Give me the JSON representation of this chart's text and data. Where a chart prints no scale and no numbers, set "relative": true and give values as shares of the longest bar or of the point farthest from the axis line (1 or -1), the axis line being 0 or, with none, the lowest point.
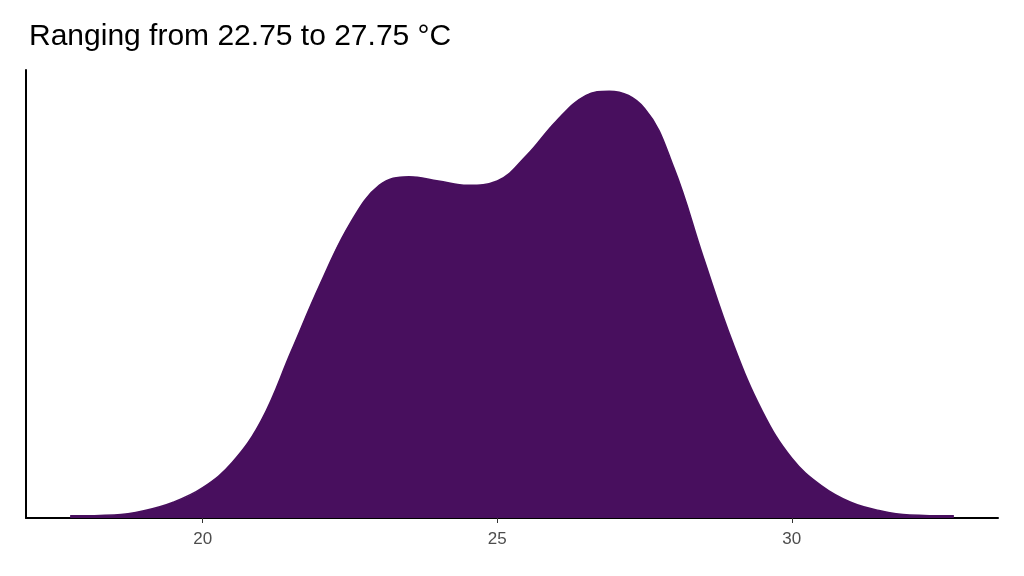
{
  "chart_data": {
    "type": "area",
    "title": "Ranging from 22.75 to 27.75 °C",
    "relative": true,
    "x": [
      17.75,
      18.5,
      19,
      19.5,
      20,
      20.5,
      21,
      21.5,
      22,
      22.5,
      23,
      23.5,
      24,
      24.5,
      25,
      25.5,
      26,
      26.5,
      26.9,
      27.5,
      28,
      28.5,
      29,
      29.5,
      30,
      30.5,
      31,
      31.5,
      32,
      32.75
    ],
    "series": [
      {
        "color": "#480f5e",
        "values": [
          0.005,
          0.007,
          0.017,
          0.037,
          0.071,
          0.13,
          0.23,
          0.39,
          0.55,
          0.69,
          0.78,
          0.8,
          0.79,
          0.78,
          0.79,
          0.85,
          0.93,
          0.99,
          1,
          0.96,
          0.82,
          0.61,
          0.41,
          0.25,
          0.14,
          0.076,
          0.037,
          0.017,
          0.007,
          0.005
        ]
      }
    ],
    "xlim": [
      17,
      33.5
    ],
    "xticks": [
      20,
      25,
      30
    ],
    "tick_labels": "x",
    "grid": false
  }
}
